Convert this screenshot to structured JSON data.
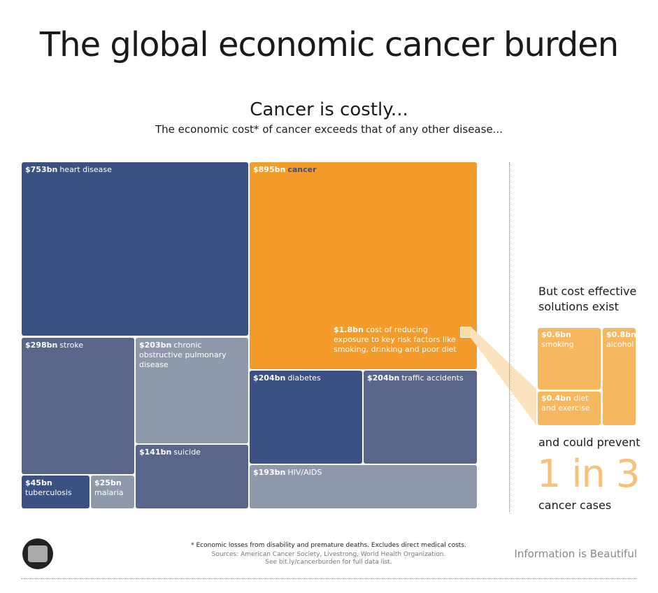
{
  "page": {
    "title": "The global economic cancer burden",
    "subtitle": "Cancer is costly...",
    "subsubtitle": "The economic cost* of cancer exceeds that of any other disease..."
  },
  "colors": {
    "dark_blue": "#3b5083",
    "mid_blue": "#586789",
    "light_blue": "#8e9aac",
    "orange": "#f49c2b",
    "light_orange": "#f7b75e",
    "pale_orange": "#fbe3c0"
  },
  "chart_data": {
    "type": "treemap",
    "units": "$bn",
    "items": [
      {
        "label": "heart disease",
        "value": 753,
        "display": "$753bn",
        "color": "#3b5083"
      },
      {
        "label": "cancer",
        "value": 895,
        "display": "$895bn",
        "color": "#f49c2b"
      },
      {
        "label": "stroke",
        "value": 298,
        "display": "$298bn",
        "color": "#586789"
      },
      {
        "label": "chronic obstructive pulmonary disease",
        "value": 203,
        "display": "$203bn",
        "color": "#8e9aac"
      },
      {
        "label": "suicide",
        "value": 141,
        "display": "$141bn",
        "color": "#586789"
      },
      {
        "label": "tuberculosis",
        "value": 45,
        "display": "$45bn",
        "color": "#3b5083"
      },
      {
        "label": "malaria",
        "value": 25,
        "display": "$25bn",
        "color": "#8e9aac"
      },
      {
        "label": "diabetes",
        "value": 204,
        "display": "$204bn",
        "color": "#3b5083"
      },
      {
        "label": "traffic accidents",
        "value": 204,
        "display": "$204bn",
        "color": "#586789"
      },
      {
        "label": "HIV/AIDS",
        "value": 193,
        "display": "$193bn",
        "color": "#8e9aac"
      }
    ],
    "callout": {
      "value": 1.8,
      "display": "$1.8bn",
      "text": "cost of reducing exposure to key risk factors like smoking, drinking and poor diet"
    },
    "solutions": [
      {
        "label": "smoking",
        "value": 0.6,
        "display": "$0.6bn"
      },
      {
        "label": "alcohol",
        "value": 0.8,
        "display": "$0.8bn"
      },
      {
        "label": "diet and exercise",
        "value": 0.4,
        "display": "$0.4bn"
      }
    ]
  },
  "side": {
    "solutions_heading": "But cost effective solutions exist",
    "prevent_text": "and could prevent",
    "big_stat": "1 in 3",
    "cases_text": "cancer cases"
  },
  "footer": {
    "footnote": "* Economic losses from disability and premature deaths. Excludes direct medical costs.",
    "sources": "Sources: American Cancer Society, Livestrong, World Health Organization.",
    "link": "See bit.ly/cancerburden for full data list.",
    "brand": "Information is Beautiful"
  }
}
